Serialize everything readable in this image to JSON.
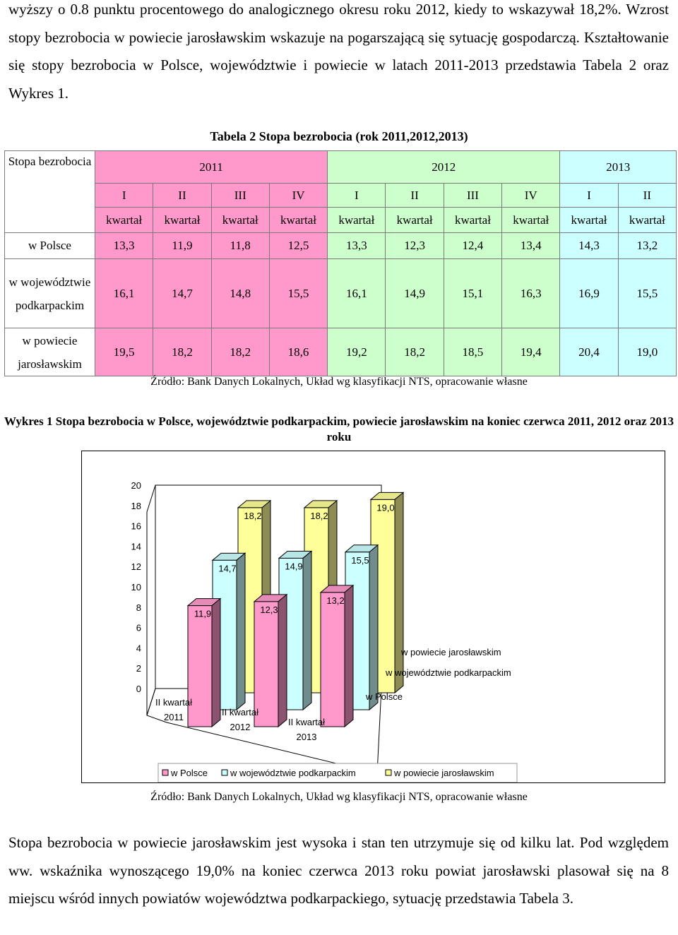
{
  "top_paragraph": "wyższy o 0.8 punktu procentowego do analogicznego okresu roku 2012, kiedy to wskazywał 18,2%. Wzrost stopy bezrobocia w powiecie jarosławskim wskazuje na pogarszającą się sytuację gospodarczą. Kształtowanie się stopy bezrobocia w Polsce, województwie i powiecie w latach 2011-2013 przedstawia Tabela 2 oraz Wykres 1.",
  "table": {
    "caption": "Tabela 2 Stopa bezrobocia (rok 2011,2012,2013)",
    "corner_label": "Stopa bezrobocia",
    "years": [
      "2011",
      "2012",
      "2013"
    ],
    "quarters": [
      "I",
      "II",
      "III",
      "IV",
      "I",
      "II",
      "III",
      "IV",
      "I",
      "II"
    ],
    "quarter_unit": "kwartał",
    "rows": [
      {
        "label": "w Polsce",
        "values": [
          "13,3",
          "11,9",
          "11,8",
          "12,5",
          "13,3",
          "12,3",
          "12,4",
          "13,4",
          "14,3",
          "13,2"
        ]
      },
      {
        "label": "w województwie podkarpackim",
        "values": [
          "16,1",
          "14,7",
          "14,8",
          "15,5",
          "16,1",
          "14,9",
          "15,1",
          "16,3",
          "16,9",
          "15,5"
        ]
      },
      {
        "label": "w powiecie jarosławskim",
        "values": [
          "19,5",
          "18,2",
          "18,2",
          "18,6",
          "19,2",
          "18,2",
          "18,5",
          "19,4",
          "20,4",
          "19,0"
        ]
      }
    ],
    "source": "Źródło: Bank Danych Lokalnych, Układ wg klasyfikacji NTS, opracowanie własne"
  },
  "chart_caption": "Wykres 1 Stopa bezrobocia w Polsce, województwie podkarpackim, powiecie jarosławskim na koniec czerwca 2011, 2012 oraz 2013 roku",
  "chart_data": {
    "type": "bar",
    "title": "Wykres 1 Stopa bezrobocia w Polsce, województwie podkarpackim, powiecie jarosławskim na koniec czerwca 2011, 2012 oraz 2013 roku",
    "categories": [
      "II kwartał 2011",
      "II kwartał 2012",
      "II kwartał 2013"
    ],
    "category_lines": [
      [
        "II kwartał",
        "2011"
      ],
      [
        "II kwartał",
        "2012"
      ],
      [
        "II kwartał",
        "2013"
      ]
    ],
    "series": [
      {
        "name": "w Polsce",
        "values": [
          11.9,
          12.3,
          13.2
        ],
        "labels": [
          "11,9",
          "12,3",
          "13,2"
        ],
        "color": "#ff99cc"
      },
      {
        "name": "w województwie podkarpackim",
        "values": [
          14.7,
          14.9,
          15.5
        ],
        "labels": [
          "14,7",
          "14,9",
          "15,5"
        ],
        "color": "#ccffff"
      },
      {
        "name": "w powiecie jarosławskim",
        "values": [
          18.2,
          18.2,
          19.0
        ],
        "labels": [
          "18,2",
          "18,2",
          "19,0"
        ],
        "color": "#ffff99"
      }
    ],
    "y_ticks": [
      "0",
      "2",
      "4",
      "6",
      "8",
      "10",
      "12",
      "14",
      "16",
      "18",
      "20"
    ],
    "ylim": [
      0,
      20
    ],
    "legend": [
      "w Polsce",
      "w województwie podkarpackim",
      "w powiecie jarosławskim"
    ],
    "legend_position": "bottom",
    "depth_labels": [
      "w Polsce",
      "w województwie podkarpackim",
      "w powiecie jarosławskim"
    ],
    "style": "3d-columns"
  },
  "chart_source": "Źródło: Bank Danych Lokalnych, Układ wg klasyfikacji NTS, opracowanie własne",
  "bottom_paragraph": "Stopa bezrobocia w powiecie jarosławskim jest wysoka i stan ten utrzymuje się od kilku lat. Pod względem ww. wskaźnika wynoszącego 19,0% na koniec czerwca 2013 roku powiat jarosławski plasował się na 8 miejscu wśród innych powiatów województwa podkarpackiego, sytuację przedstawia Tabela 3."
}
